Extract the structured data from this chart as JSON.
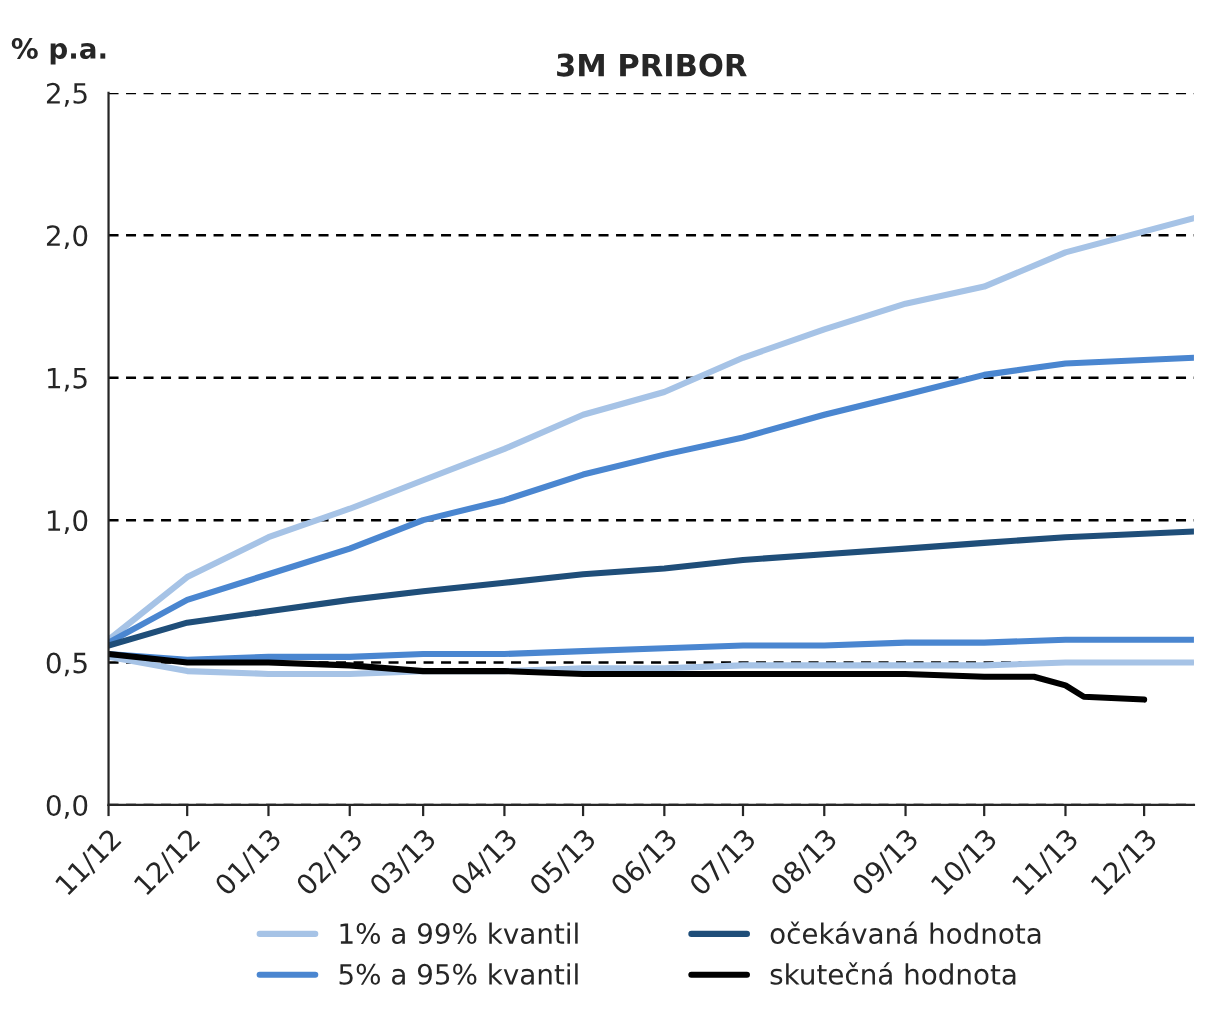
{
  "chart_data": {
    "type": "line",
    "title": "3M PRIBOR",
    "ylabel": "% p.a.",
    "x": [
      "2012-11-01",
      "2012-12-01",
      "2013-01-01",
      "2013-02-01",
      "2013-03-01",
      "2013-04-01",
      "2013-05-01",
      "2013-06-01",
      "2013-07-01",
      "2013-08-01",
      "2013-09-01",
      "2013-10-01",
      "2013-11-01",
      "2013-12-20"
    ],
    "series": [
      {
        "name": "1% a 99% kvantil",
        "color": "#a6c3e6",
        "values": [
          0.58,
          0.8,
          0.94,
          1.04,
          1.14,
          1.25,
          1.37,
          1.45,
          1.57,
          1.67,
          1.76,
          1.82,
          1.94,
          2.06
        ]
      },
      {
        "name": null,
        "color": "#a6c3e6",
        "values": [
          0.52,
          0.47,
          0.46,
          0.46,
          0.47,
          0.47,
          0.48,
          0.48,
          0.49,
          0.49,
          0.49,
          0.49,
          0.5,
          0.5
        ]
      },
      {
        "name": "5% a 95% kvantil",
        "color": "#4a86d0",
        "values": [
          0.57,
          0.72,
          0.81,
          0.9,
          1.0,
          1.07,
          1.16,
          1.23,
          1.29,
          1.37,
          1.44,
          1.51,
          1.55,
          1.57
        ]
      },
      {
        "name": null,
        "color": "#4a86d0",
        "values": [
          0.53,
          0.51,
          0.52,
          0.52,
          0.53,
          0.53,
          0.54,
          0.55,
          0.56,
          0.56,
          0.57,
          0.57,
          0.58,
          0.58
        ]
      },
      {
        "name": "očekávaná hodnota",
        "color": "#1f4e79",
        "values": [
          0.56,
          0.64,
          0.68,
          0.72,
          0.75,
          0.78,
          0.81,
          0.83,
          0.86,
          0.88,
          0.9,
          0.92,
          0.94,
          0.96
        ]
      },
      {
        "name": "skutečná hodnota",
        "color": "#000000",
        "x": [
          "2012-11-01",
          "2012-12-01",
          "2013-01-01",
          "2013-02-01",
          "2013-03-01",
          "2013-04-01",
          "2013-05-01",
          "2013-07-01",
          "2013-09-01",
          "2013-10-01",
          "2013-10-20",
          "2013-11-01",
          "2013-11-08",
          "2013-12-01"
        ],
        "values": [
          0.53,
          0.5,
          0.5,
          0.49,
          0.47,
          0.47,
          0.46,
          0.46,
          0.46,
          0.45,
          0.45,
          0.42,
          0.38,
          0.37
        ]
      }
    ],
    "xlim": [
      "2012-11-01",
      "2013-12-20"
    ],
    "xticks": [
      {
        "value": "2012-11-01",
        "label": "11/12"
      },
      {
        "value": "2012-12-01",
        "label": "12/12"
      },
      {
        "value": "2013-01-01",
        "label": "01/13"
      },
      {
        "value": "2013-02-01",
        "label": "02/13"
      },
      {
        "value": "2013-03-01",
        "label": "03/13"
      },
      {
        "value": "2013-04-01",
        "label": "04/13"
      },
      {
        "value": "2013-05-01",
        "label": "05/13"
      },
      {
        "value": "2013-06-01",
        "label": "06/13"
      },
      {
        "value": "2013-07-01",
        "label": "07/13"
      },
      {
        "value": "2013-08-01",
        "label": "08/13"
      },
      {
        "value": "2013-09-01",
        "label": "09/13"
      },
      {
        "value": "2013-10-01",
        "label": "10/13"
      },
      {
        "value": "2013-11-01",
        "label": "11/13"
      },
      {
        "value": "2013-12-01",
        "label": "12/13"
      }
    ],
    "ylim": [
      0,
      2.5
    ],
    "yticks": [
      {
        "value": 0,
        "label": "0,0"
      },
      {
        "value": 0.5,
        "label": "0,5"
      },
      {
        "value": 1.0,
        "label": "1,0"
      },
      {
        "value": 1.5,
        "label": "1,5"
      },
      {
        "value": 2.0,
        "label": "2,0"
      },
      {
        "value": 2.5,
        "label": "2,5"
      }
    ],
    "grid": "y",
    "legend": "bottom",
    "line_style": "solid",
    "marker": "none"
  }
}
